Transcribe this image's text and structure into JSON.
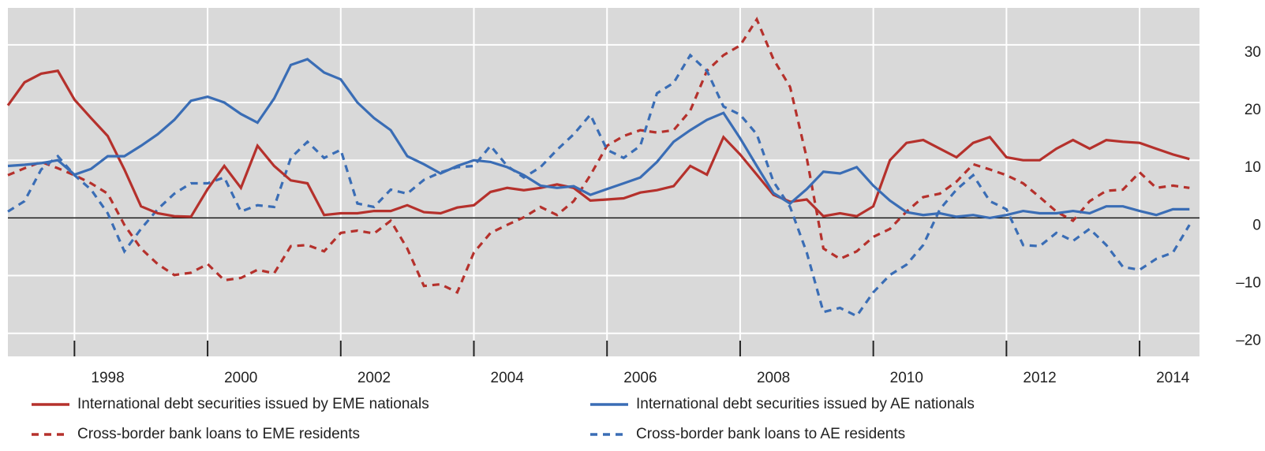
{
  "chart_data": {
    "type": "line",
    "x": [
      1997,
      1997.25,
      1997.5,
      1997.75,
      1998,
      1998.25,
      1998.5,
      1998.75,
      1999,
      1999.25,
      1999.5,
      1999.75,
      2000,
      2000.25,
      2000.5,
      2000.75,
      2001,
      2001.25,
      2001.5,
      2001.75,
      2002,
      2002.25,
      2002.5,
      2002.75,
      2003,
      2003.25,
      2003.5,
      2003.75,
      2004,
      2004.25,
      2004.5,
      2004.75,
      2005,
      2005.25,
      2005.5,
      2005.75,
      2006,
      2006.25,
      2006.5,
      2006.75,
      2007,
      2007.25,
      2007.5,
      2007.75,
      2008,
      2008.25,
      2008.5,
      2008.75,
      2009,
      2009.25,
      2009.5,
      2009.75,
      2010,
      2010.25,
      2010.5,
      2010.75,
      2011,
      2011.25,
      2011.5,
      2011.75,
      2012,
      2012.25,
      2012.5,
      2012.75,
      2013,
      2013.25,
      2013.5,
      2013.75,
      2014,
      2014.25,
      2014.5,
      2014.75
    ],
    "series": [
      {
        "name": "International debt securities issued by EME nationals",
        "color": "#b5312c",
        "dashed": false,
        "values": [
          19.5,
          23.5,
          25,
          25.5,
          20.5,
          17.3,
          14.2,
          8.4,
          2,
          0.8,
          0.3,
          0.2,
          5,
          9,
          5.2,
          12.5,
          9,
          6.5,
          6,
          0.5,
          0.8,
          0.8,
          1.2,
          1.2,
          2.2,
          1,
          0.8,
          1.8,
          2.2,
          4.5,
          5.2,
          4.8,
          5.2,
          5.8,
          5.2,
          3,
          3.2,
          3.4,
          4.4,
          4.8,
          5.5,
          9,
          7.5,
          14,
          11,
          7.5,
          4,
          2.8,
          3.2,
          0.3,
          0.8,
          0.3,
          2,
          10,
          13,
          13.5,
          12,
          10.5,
          13,
          14,
          10.5,
          10,
          10,
          12,
          13.5,
          12,
          13.5,
          13.2,
          13,
          12,
          11,
          10.2
        ]
      },
      {
        "name": "International debt securities issued by AE nationals",
        "color": "#3a6db5",
        "dashed": false,
        "values": [
          9,
          9.2,
          9.5,
          10,
          7.5,
          8.5,
          10.7,
          10.7,
          12.5,
          14.5,
          17,
          20.3,
          21,
          20,
          18,
          16.5,
          20.7,
          26.5,
          27.5,
          25.2,
          24,
          20,
          17.3,
          15.2,
          10.7,
          9.3,
          7.7,
          9,
          10,
          9.7,
          8.8,
          7.4,
          5.6,
          5.2,
          5.5,
          4,
          5,
          6,
          7,
          9.7,
          13.2,
          15.2,
          17,
          18.2,
          13.8,
          9,
          4.3,
          2.5,
          5,
          8,
          7.7,
          8.8,
          5.6,
          3,
          1,
          0.5,
          0.8,
          0.2,
          0.5,
          0,
          0.5,
          1.2,
          0.8,
          0.8,
          1.2,
          0.8,
          2,
          2,
          1.2,
          0.5,
          1.5,
          1.5
        ]
      },
      {
        "name": "Cross-border bank loans to EME residents",
        "color": "#b5312c",
        "dashed": true,
        "values": [
          7.4,
          8.6,
          9.7,
          8.6,
          7.4,
          6,
          4.2,
          -1.2,
          -5.3,
          -8,
          -9.9,
          -9.5,
          -8,
          -10.8,
          -10.4,
          -9,
          -9.6,
          -4.9,
          -4.7,
          -5.8,
          -2.6,
          -2.2,
          -2.7,
          -0.5,
          -5.3,
          -11.8,
          -11.5,
          -12.9,
          -6,
          -2.6,
          -1.2,
          0.1,
          1.9,
          0.5,
          2.9,
          7.4,
          12.5,
          14.2,
          15.2,
          14.8,
          15.2,
          18.6,
          25.5,
          28.2,
          29.9,
          34.4,
          27.5,
          22.7,
          10.4,
          -5.3,
          -7.1,
          -5.8,
          -3.3,
          -1.9,
          1.1,
          3.6,
          4.2,
          6.3,
          9.3,
          8.4,
          7.4,
          6,
          3.6,
          1.1,
          -0.5,
          2.9,
          4.7,
          4.9,
          7.9,
          5.2,
          5.6,
          5.2
        ]
      },
      {
        "name": "Cross-border bank loans to AE residents",
        "color": "#3a6db5",
        "dashed": true,
        "values": [
          1.1,
          2.9,
          8.4,
          10.7,
          7.4,
          4.9,
          0.8,
          -5.8,
          -1.9,
          1.5,
          4.2,
          6,
          6,
          7,
          1.1,
          2.2,
          1.9,
          10.4,
          13.2,
          10.4,
          11.8,
          2.5,
          1.9,
          4.9,
          4.2,
          6.6,
          7.9,
          8.8,
          9,
          12.5,
          9,
          7,
          8.8,
          11.8,
          14.5,
          17.9,
          11.8,
          10.4,
          12.5,
          21.6,
          23.4,
          28.2,
          25.5,
          19.3,
          17.9,
          14.5,
          6.3,
          1.9,
          -6,
          -16.3,
          -15.6,
          -17,
          -12.9,
          -9.9,
          -8.1,
          -4.7,
          1.5,
          4.9,
          7.4,
          2.9,
          1.5,
          -4.7,
          -4.9,
          -2.6,
          -4,
          -1.9,
          -4.7,
          -8.5,
          -9,
          -7.1,
          -6,
          -1.2
        ]
      }
    ],
    "xlim": [
      1997,
      2014.9
    ],
    "xticks": [
      1998,
      2000,
      2002,
      2004,
      2006,
      2008,
      2010,
      2012,
      2014
    ],
    "ylim": [
      -24,
      36.4
    ],
    "yticks": [
      {
        "value": -20,
        "label": "–20"
      },
      {
        "value": -10,
        "label": "–10"
      },
      0,
      10,
      20,
      30
    ],
    "grid": true
  }
}
